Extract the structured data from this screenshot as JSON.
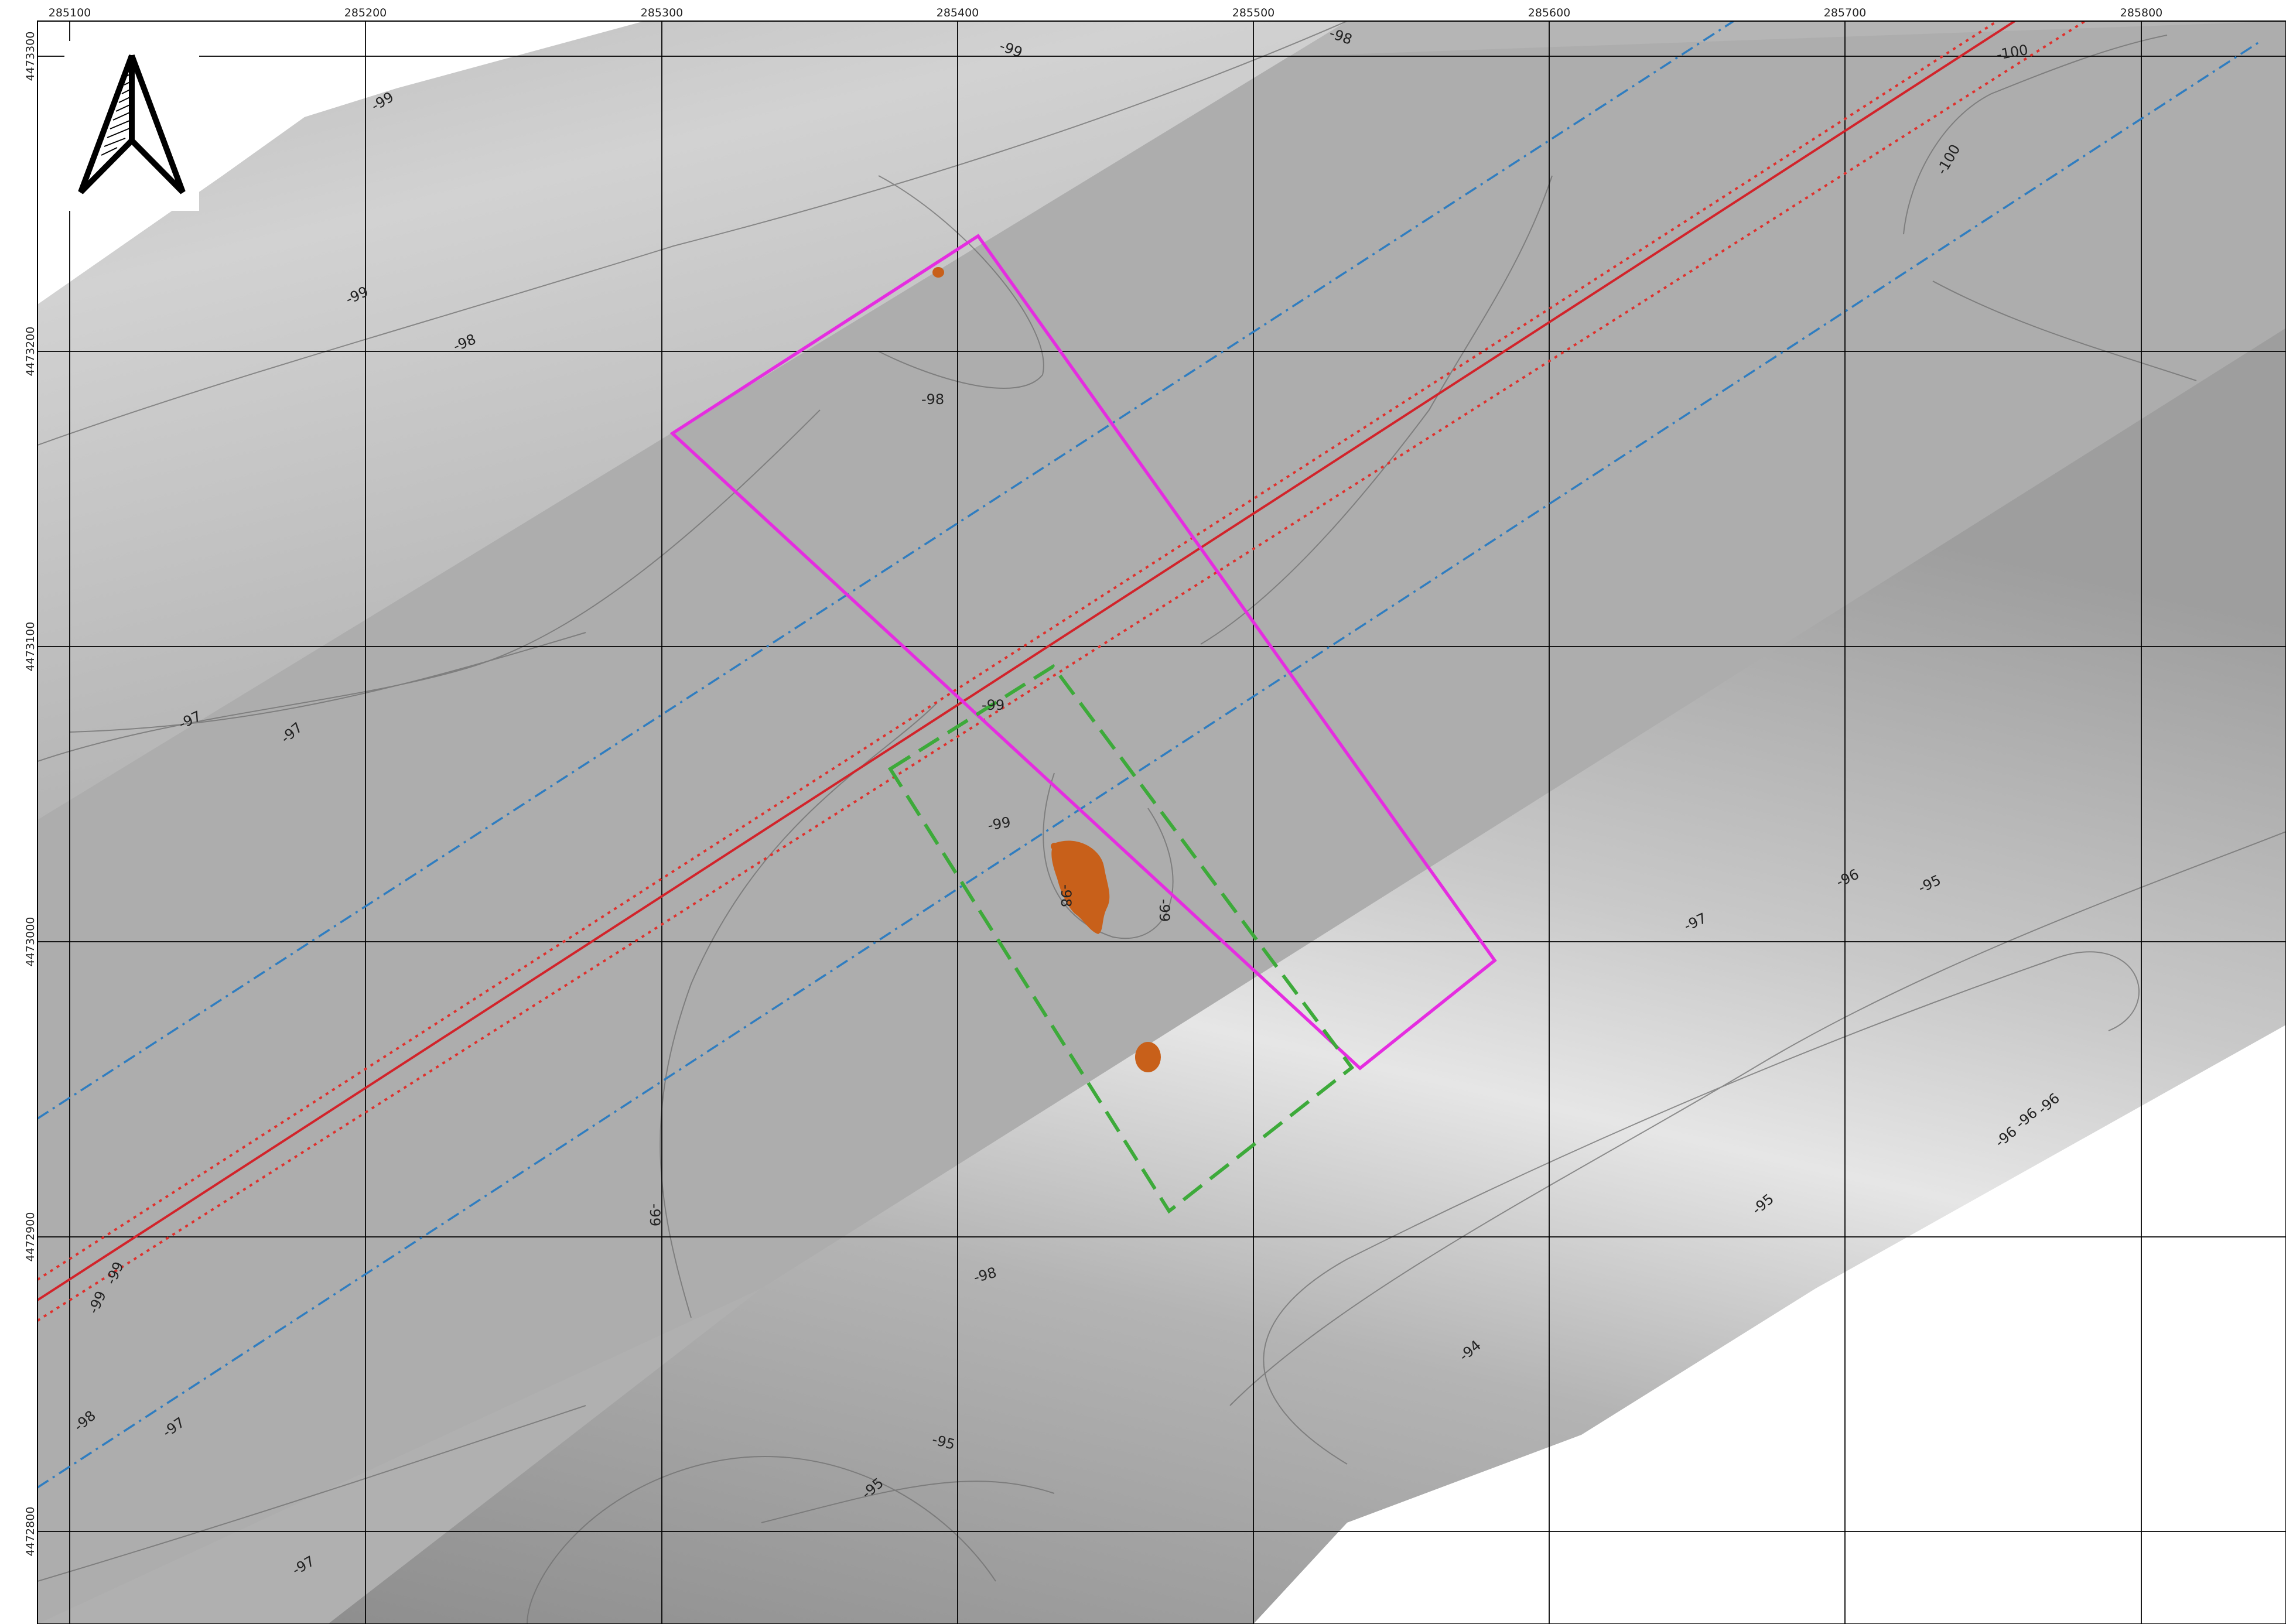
{
  "map": {
    "x_ticks": [
      "285100",
      "285200",
      "285300",
      "285400",
      "285500",
      "285600",
      "285700",
      "285800"
    ],
    "y_ticks": [
      "4473300",
      "4473200",
      "4473100",
      "4473000",
      "4472900",
      "4472800"
    ],
    "contour_labels": [
      "-99",
      "-99",
      "-98",
      "-99",
      "-98",
      "-97",
      "-97",
      "-99",
      "-99",
      "-99",
      "-98",
      "-96",
      "-95",
      "-97",
      "-95",
      "-96",
      "-96",
      "-96",
      "-99",
      "-98",
      "-97",
      "-95",
      "-95",
      "-97",
      "-94",
      "-98",
      "-100",
      "-100",
      "-99",
      "-99",
      "-98"
    ],
    "north_arrow": "north-arrow-icon"
  },
  "colors": {
    "route_centerline": "#d2232a",
    "route_corridor": "#e0302c",
    "outer_corridor": "#2f7dc0",
    "survey_box": "#e52de0",
    "inner_box": "#3daa3a",
    "targets": "#c8601a",
    "grid": "#000000"
  }
}
